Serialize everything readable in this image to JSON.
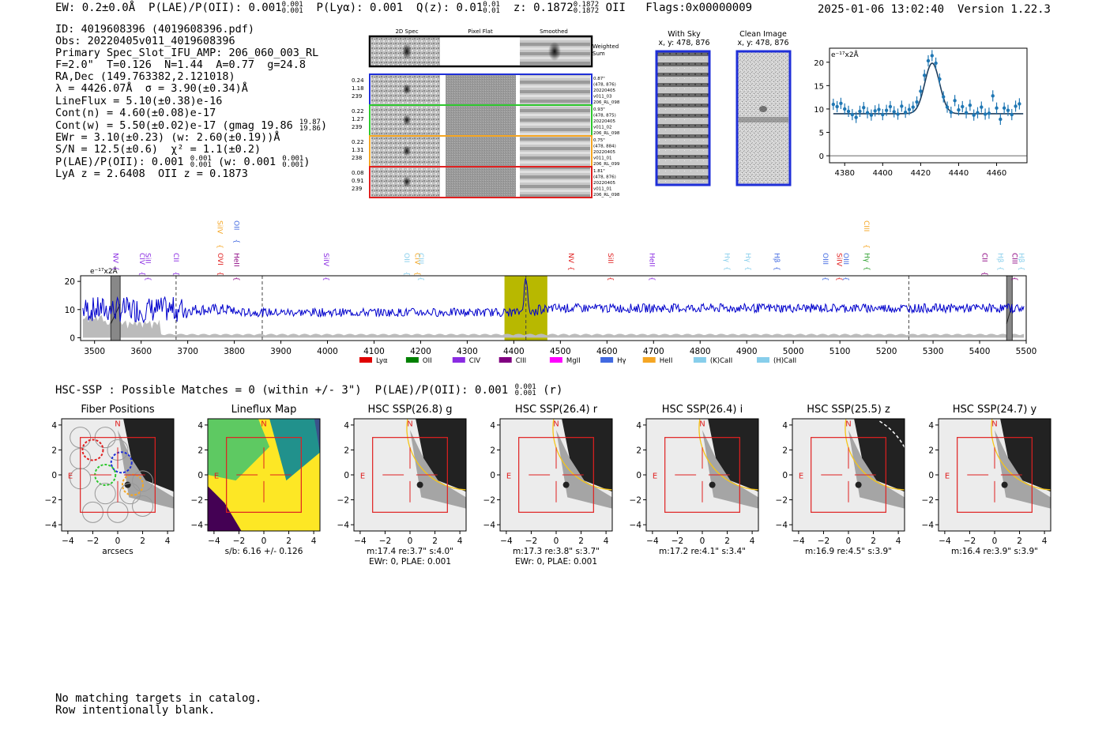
{
  "header": {
    "ew": "EW: 0.2±0.0Å",
    "plae": "P(LAE)/P(OII): 0.001",
    "plae_sup": [
      "0.001",
      "0.001"
    ],
    "plya": "P(Lyα): 0.001",
    "qz": "Q(z): 0.01",
    "qz_sup": [
      "0.01",
      "0.01"
    ],
    "z": "z: 0.1872",
    "z_sup": [
      "0.1872",
      "0.1872"
    ],
    "z_line": "OII",
    "flags": "Flags:0x00000009",
    "timestamp": "2025-01-06 13:02:40",
    "version": "Version 1.22.3"
  },
  "info": {
    "id": "ID: 4019608396 (4019608396.pdf)",
    "obs": "Obs: 20220405v011_4019608396",
    "primary": "Primary Spec_Slot_IFU_AMP: 206_060_003_RL",
    "fwhm": "F=2.0\"  T=0.126  N=1.44  A=0.77  g=24.8",
    "radec": "RA,Dec (149.763382,2.121018)",
    "lambda": "λ = 4426.07Å  σ = 3.90(±0.34)Å",
    "lineflux": "LineFlux = 5.10(±0.38)e-16",
    "contn": "Cont(n) = 4.60(±0.08)e-17",
    "contw": "Cont(w) = 5.50(±0.02)e-17 (gmag 19.86",
    "contw_sup": [
      "19.87",
      "19.86"
    ],
    "ewr": "EWr = 3.10(±0.23) (w: 2.60(±0.19))Å",
    "sn": "S/N = 12.5(±0.6)  χ² = 1.1(±0.2)",
    "plae": "P(LAE)/P(OII): 0.001",
    "plae_sup": [
      "0.001",
      "0.001"
    ],
    "plae_w": "(w: 0.001",
    "plae_w_sup": [
      "0.001",
      "0.001"
    ],
    "lya": "LyA z = 2.6408  OII z = 0.1873"
  },
  "cutouts": {
    "headers": [
      "2D Spec",
      "Pixel Flat",
      "Smoothed"
    ],
    "weighted": "Weighted\nSum",
    "rows": [
      {
        "left": [
          "0.24",
          "1.18",
          "239"
        ],
        "right": [
          "0.87\"",
          "(478, 876)",
          "20220405",
          "v011_03",
          "206_RL_098"
        ],
        "color": "#1f2fd8"
      },
      {
        "left": [
          "0.22",
          "1.27",
          "239"
        ],
        "right": [
          "0.93\"",
          "(478, 875)",
          "20220405",
          "v011_02",
          "206_RL_098"
        ],
        "color": "#2ec82e"
      },
      {
        "left": [
          "0.22",
          "1.31",
          "238"
        ],
        "right": [
          "0.75\"",
          "(478, 884)",
          "20220405",
          "v011_01",
          "206_RL_099"
        ],
        "color": "#f5a623"
      },
      {
        "left": [
          "0.08",
          "0.91",
          "239"
        ],
        "right": [
          "1.81\"",
          "(478, 876)",
          "20220405",
          "v011_01",
          "206_RL_098"
        ],
        "color": "#e02020"
      }
    ]
  },
  "sky": {
    "with_sky": "With Sky",
    "with_sky_xy": "x, y: 478, 876",
    "clean": "Clean Image",
    "clean_xy": "x, y: 478, 876"
  },
  "chart_data": [
    {
      "type": "scatter",
      "title": "",
      "unit_label": "e⁻¹⁷x2Å",
      "xlim": [
        4372,
        4476
      ],
      "ylim": [
        -1.5,
        23
      ],
      "xticks": [
        4380,
        4400,
        4420,
        4440,
        4460
      ],
      "yticks": [
        0,
        5,
        10,
        15,
        20
      ],
      "gauss": {
        "center": 4426.07,
        "sigma": 3.9,
        "amp": 10.8,
        "cont": 9.0
      },
      "x": [
        4374,
        4376,
        4378,
        4380,
        4382,
        4384,
        4386,
        4388,
        4390,
        4392,
        4394,
        4396,
        4398,
        4400,
        4402,
        4404,
        4406,
        4408,
        4410,
        4412,
        4414,
        4416,
        4418,
        4420,
        4422,
        4424,
        4426,
        4428,
        4430,
        4432,
        4434,
        4436,
        4438,
        4440,
        4442,
        4444,
        4446,
        4448,
        4450,
        4452,
        4454,
        4456,
        4458,
        4460,
        4462,
        4464,
        4466,
        4468,
        4470,
        4472
      ],
      "y": [
        11,
        10.5,
        11.2,
        10,
        9.5,
        8.8,
        8.2,
        9.5,
        10.3,
        9.2,
        8.7,
        9.6,
        9.9,
        8.8,
        9.7,
        10.5,
        9.4,
        8.9,
        10.6,
        9.3,
        9.9,
        10.4,
        11.5,
        13.8,
        17.2,
        20.3,
        21.4,
        19.8,
        16.4,
        12.6,
        10.4,
        9.3,
        11.8,
        9.8,
        10.5,
        9.2,
        10.8,
        8.7,
        9.2,
        10.4,
        8.9,
        9.1,
        12.8,
        10.2,
        7.8,
        10.2,
        9.7,
        8.8,
        10.6,
        11.1
      ],
      "err": 1.2,
      "colors": {
        "points": "#1f77b4",
        "fit": "#1f3f5f"
      }
    },
    {
      "type": "line",
      "title": "",
      "unit_label": "e⁻¹⁷x2Å",
      "xlim": [
        3470,
        5500
      ],
      "ylim": [
        -1,
        22
      ],
      "xticks": [
        3500,
        3600,
        3700,
        3800,
        3900,
        4000,
        4100,
        4200,
        4300,
        4400,
        4500,
        4600,
        4700,
        4800,
        4900,
        5000,
        5100,
        5200,
        5300,
        5400,
        5500
      ],
      "yticks": [
        0,
        10,
        20
      ],
      "highlight": {
        "from": 4380,
        "to": 4472,
        "color": "#b8b800"
      },
      "dashed_lines": [
        3675,
        3860,
        4426,
        5248
      ],
      "masks": [
        [
          3535,
          3555
        ],
        [
          5458,
          5470
        ]
      ],
      "line_markers": [
        {
          "label": "NV",
          "x": 3540,
          "color": "#8a2be2",
          "row": 2
        },
        {
          "label": "CIV",
          "x": 3597,
          "color": "#8a2be2",
          "row": 2
        },
        {
          "label": "SiII",
          "x": 3610,
          "color": "#8a2be2",
          "row": 2
        },
        {
          "label": "CII",
          "x": 3670,
          "color": "#8a2be2",
          "row": 2
        },
        {
          "label": "SiIV",
          "x": 3764,
          "color": "#f5a623",
          "row": 1
        },
        {
          "label": "OVI",
          "x": 3765,
          "color": "#e02020",
          "row": 2
        },
        {
          "label": "OII",
          "x": 3800,
          "color": "#4169e1",
          "row": 1
        },
        {
          "label": "HeII",
          "x": 3800,
          "color": "#8b0080",
          "row": 2
        },
        {
          "label": "SiIV",
          "x": 3992,
          "color": "#8a2be2",
          "row": 2
        },
        {
          "label": "OII",
          "x": 4165,
          "color": "#87ceeb",
          "row": 2
        },
        {
          "label": "CIV",
          "x": 4188,
          "color": "#f5a623",
          "row": 2
        },
        {
          "label": "CIII",
          "x": 4196,
          "color": "#87ceeb",
          "row": 2
        },
        {
          "label": "NV",
          "x": 4518,
          "color": "#e02020",
          "row": 2
        },
        {
          "label": "SiII",
          "x": 4603,
          "color": "#e02020",
          "row": 2
        },
        {
          "label": "HeII",
          "x": 4692,
          "color": "#8a2be2",
          "row": 2
        },
        {
          "label": "Hγ",
          "x": 4853,
          "color": "#87ceeb",
          "row": 2
        },
        {
          "label": "Hγ",
          "x": 4898,
          "color": "#87ceeb",
          "row": 2
        },
        {
          "label": "Hβ",
          "x": 4960,
          "color": "#4169e1",
          "row": 2
        },
        {
          "label": "OIII",
          "x": 5064,
          "color": "#4169e1",
          "row": 2
        },
        {
          "label": "SiIV",
          "x": 5094,
          "color": "#e02020",
          "row": 2
        },
        {
          "label": "OIII",
          "x": 5108,
          "color": "#4169e1",
          "row": 2
        },
        {
          "label": "CIII",
          "x": 5152,
          "color": "#f5a623",
          "row": 1
        },
        {
          "label": "Hγ",
          "x": 5153,
          "color": "#2ca02c",
          "row": 2
        },
        {
          "label": "CII",
          "x": 5406,
          "color": "#8b0080",
          "row": 2
        },
        {
          "label": "Hβ",
          "x": 5440,
          "color": "#87ceeb",
          "row": 2
        },
        {
          "label": "CIII",
          "x": 5470,
          "color": "#8b0080",
          "row": 2
        },
        {
          "label": "Hβ",
          "x": 5485,
          "color": "#87ceeb",
          "row": 2
        }
      ],
      "legend": [
        {
          "name": "Lyα",
          "color": "#e00000"
        },
        {
          "name": "OII",
          "color": "#008000"
        },
        {
          "name": "CIV",
          "color": "#8a2be2"
        },
        {
          "name": "CIII",
          "color": "#800080"
        },
        {
          "name": "MgII",
          "color": "#ff00ff"
        },
        {
          "name": "Hγ",
          "color": "#4169e1"
        },
        {
          "name": "HeII",
          "color": "#f5a623"
        },
        {
          "name": "(K)CaII",
          "color": "#87ceeb"
        },
        {
          "name": "(H)CaII",
          "color": "#87ceeb"
        }
      ],
      "colors": {
        "spectrum": "#0000cc",
        "sky": "#bbbbbb"
      }
    }
  ],
  "hsc": {
    "line": "HSC-SSP : Possible Matches = 0 (within +/- 3\")  P(LAE)/P(OII): 0.001",
    "line_sup": [
      "0.001",
      "0.001"
    ],
    "line_suffix": "(r)",
    "panels": [
      {
        "title": "Fiber Positions",
        "caption": "arcsecs",
        "caption2": ""
      },
      {
        "title": "Lineflux Map",
        "caption": "s/b: 6.16 +/- 0.126",
        "caption2": ""
      },
      {
        "title": "HSC SSP(26.8) g",
        "caption": "m:17.4  re:3.7\"  s:4.0\"",
        "caption2": "EWr: 0, PLAE: 0.001"
      },
      {
        "title": "HSC SSP(26.4) r",
        "caption": "m:17.3  re:3.8\"  s:3.7\"",
        "caption2": "EWr: 0, PLAE: 0.001"
      },
      {
        "title": "HSC SSP(26.4) i",
        "caption": "m:17.2  re:4.1\"  s:3.4\"",
        "caption2": ""
      },
      {
        "title": "HSC SSP(25.5) z",
        "caption": "m:16.9  re:4.5\"  s:3.9\"",
        "caption2": ""
      },
      {
        "title": "HSC SSP(24.7) y",
        "caption": "m:16.4  re:3.9\"  s:3.9\"",
        "caption2": ""
      }
    ],
    "compass_n": "N",
    "compass_e": "E",
    "ticks": [
      "−4",
      "−2",
      "0",
      "2",
      "4"
    ]
  },
  "footer": {
    "line1": "No matching targets in catalog.",
    "line2": "Row intentionally blank."
  }
}
